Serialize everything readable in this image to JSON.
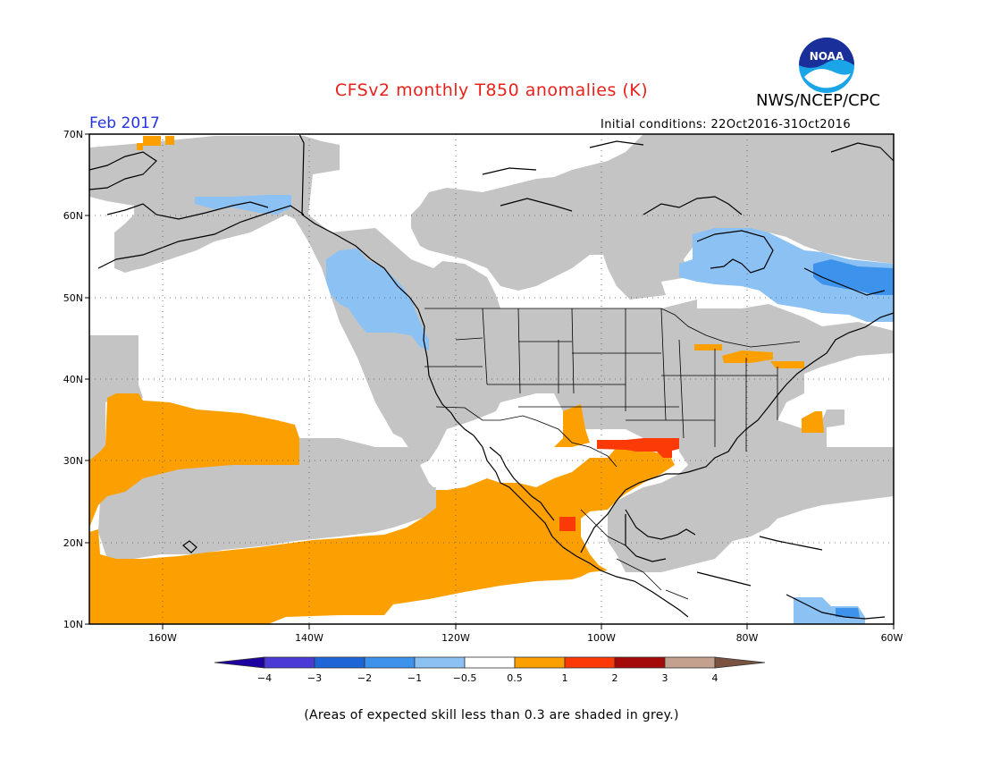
{
  "title": "CFSv2 monthly T850 anomalies (K)",
  "agency": "NWS/NCEP/CPC",
  "logo_text": "NOAA",
  "forecast_month": "Feb 2017",
  "initial_conditions": "Initial conditions: 22Oct2016-31Oct2016",
  "footnote": "(Areas of expected skill less than 0.3 are shaded in grey.)",
  "map": {
    "lat_labels": [
      "70N",
      "60N",
      "50N",
      "40N",
      "30N",
      "20N",
      "10N"
    ],
    "lon_labels": [
      "160W",
      "140W",
      "120W",
      "100W",
      "80W",
      "60W"
    ],
    "no_skill_color": "#c4c4c4"
  },
  "legend": {
    "tick_labels": [
      "−4",
      "−3",
      "−2",
      "−1",
      "−0.5",
      "0.5",
      "1",
      "2",
      "3",
      "4"
    ],
    "colors": [
      "#1e00a0",
      "#4a3bd6",
      "#1e66d8",
      "#3d93ec",
      "#8cc1f4",
      "#ffffff",
      "#fba000",
      "#fb3a08",
      "#a40a0a",
      "#c4a08e",
      "#7a5240"
    ]
  }
}
